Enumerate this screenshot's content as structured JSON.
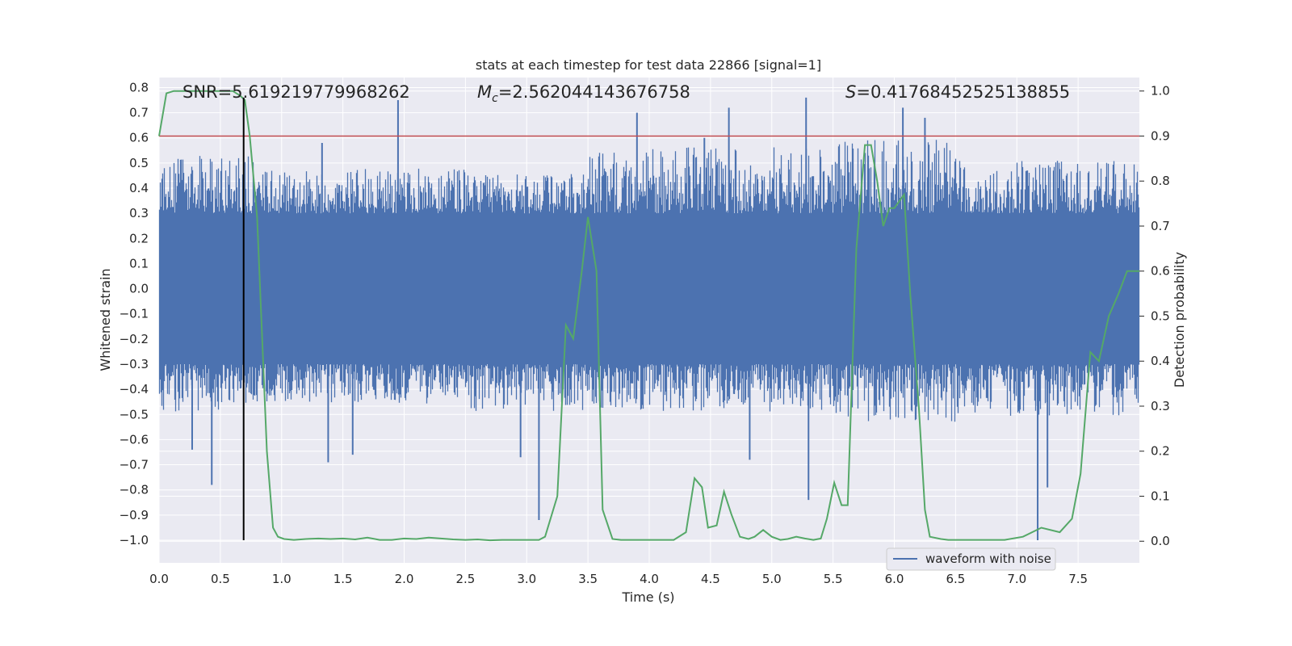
{
  "chart_data": {
    "type": "line",
    "title": "stats at each timestep for test data 22866 [signal=1]",
    "xlabel": "Time (s)",
    "ylabel": "Whitened strain",
    "y2label": "Detection probability",
    "xlim": [
      0.0,
      8.0
    ],
    "ylim": [
      -1.09,
      0.84
    ],
    "y2lim": [
      -0.048,
      1.03
    ],
    "xticks": [
      0.0,
      0.5,
      1.0,
      1.5,
      2.0,
      2.5,
      3.0,
      3.5,
      4.0,
      4.5,
      5.0,
      5.5,
      6.0,
      6.5,
      7.0,
      7.5
    ],
    "xtick_labels": [
      "0.0",
      "0.5",
      "1.0",
      "1.5",
      "2.0",
      "2.5",
      "3.0",
      "3.5",
      "4.0",
      "4.5",
      "5.0",
      "5.5",
      "6.0",
      "6.5",
      "7.0",
      "7.5"
    ],
    "yticks": [
      0.8,
      0.7,
      0.6,
      0.5,
      0.4,
      0.3,
      0.2,
      0.1,
      0.0,
      -0.1,
      -0.2,
      -0.3,
      -0.4,
      -0.5,
      -0.6,
      -0.7,
      -0.8,
      -0.9,
      -1.0
    ],
    "ytick_labels": [
      "0.8",
      "0.7",
      "0.6",
      "0.5",
      "0.4",
      "0.3",
      "0.2",
      "0.1",
      "0.0",
      "−0.1",
      "−0.2",
      "−0.3",
      "−0.4",
      "−0.5",
      "−0.6",
      "−0.7",
      "−0.8",
      "−0.9",
      "−1.0"
    ],
    "y2ticks": [
      1.0,
      0.9,
      0.8,
      0.7,
      0.6,
      0.5,
      0.4,
      0.3,
      0.2,
      0.1,
      0.0
    ],
    "y2tick_labels": [
      "1.0",
      "0.9",
      "0.8",
      "0.7",
      "0.6",
      "0.5",
      "0.4",
      "0.3",
      "0.2",
      "0.1",
      "0.0"
    ],
    "grid": true,
    "legend": {
      "position": "lower-right",
      "entries": [
        "waveform with noise"
      ]
    },
    "annotations": {
      "snr": "SNR=5.619219779968262",
      "mc_symbol": "M",
      "mc_sub": "c",
      "mc_value": "=2.562044143676758",
      "s_symbol": "S",
      "s_value": "=0.41768452525138855"
    },
    "threshold_y2": 0.9,
    "marker_time": 0.69,
    "marker_range": [
      -1.0,
      0.76
    ],
    "colors": {
      "waveform": "#4c72b0",
      "probability": "#55a868",
      "threshold": "#c44e52",
      "marker": "#000000",
      "background": "#eaeaf2",
      "grid": "#ffffff"
    },
    "waveform": {
      "name": "waveform with noise",
      "description": "dense whitened strain noise, core approx ±0.3",
      "core_band": [
        -0.3,
        0.3
      ],
      "segments": [
        {
          "t": [
            0.0,
            0.8
          ],
          "lo": -0.48,
          "hi": 0.52
        },
        {
          "t": [
            0.8,
            2.5
          ],
          "lo": -0.45,
          "hi": 0.47
        },
        {
          "t": [
            2.5,
            3.5
          ],
          "lo": -0.48,
          "hi": 0.45
        },
        {
          "t": [
            3.5,
            5.5
          ],
          "lo": -0.48,
          "hi": 0.55
        },
        {
          "t": [
            5.5,
            6.5
          ],
          "lo": -0.52,
          "hi": 0.58
        },
        {
          "t": [
            6.5,
            8.0
          ],
          "lo": -0.5,
          "hi": 0.5
        }
      ],
      "spikes": [
        {
          "t": 0.43,
          "v": -0.78
        },
        {
          "t": 1.95,
          "v": 0.75
        },
        {
          "t": 2.95,
          "v": -0.67
        },
        {
          "t": 3.1,
          "v": -0.92
        },
        {
          "t": 3.9,
          "v": 0.7
        },
        {
          "t": 4.65,
          "v": 0.72
        },
        {
          "t": 5.28,
          "v": 0.76
        },
        {
          "t": 5.3,
          "v": -0.84
        },
        {
          "t": 6.07,
          "v": 0.72
        },
        {
          "t": 6.25,
          "v": 0.68
        },
        {
          "t": 7.17,
          "v": -1.0
        },
        {
          "t": 7.25,
          "v": -0.79
        },
        {
          "t": 1.38,
          "v": -0.69
        },
        {
          "t": 1.58,
          "v": -0.66
        },
        {
          "t": 0.27,
          "v": -0.64
        },
        {
          "t": 4.82,
          "v": -0.68
        },
        {
          "t": 1.33,
          "v": 0.58
        },
        {
          "t": 4.45,
          "v": 0.6
        }
      ]
    },
    "probability": {
      "name": "detection probability",
      "x": [
        0.0,
        0.06,
        0.12,
        0.2,
        0.3,
        0.4,
        0.5,
        0.6,
        0.66,
        0.7,
        0.74,
        0.8,
        0.88,
        0.93,
        0.97,
        1.02,
        1.1,
        1.2,
        1.3,
        1.4,
        1.5,
        1.6,
        1.7,
        1.8,
        1.9,
        2.0,
        2.1,
        2.2,
        2.3,
        2.4,
        2.5,
        2.6,
        2.7,
        2.8,
        2.9,
        3.0,
        3.1,
        3.15,
        3.25,
        3.32,
        3.38,
        3.45,
        3.5,
        3.57,
        3.62,
        3.7,
        3.77,
        3.85,
        4.0,
        4.1,
        4.2,
        4.3,
        4.37,
        4.43,
        4.48,
        4.55,
        4.61,
        4.67,
        4.74,
        4.81,
        4.86,
        4.93,
        5.0,
        5.07,
        5.13,
        5.2,
        5.27,
        5.34,
        5.4,
        5.45,
        5.51,
        5.57,
        5.62,
        5.69,
        5.76,
        5.81,
        5.86,
        5.91,
        5.96,
        6.0,
        6.08,
        6.13,
        6.2,
        6.25,
        6.29,
        6.38,
        6.44,
        6.52,
        6.62,
        6.75,
        6.9,
        7.05,
        7.2,
        7.35,
        7.45,
        7.52,
        7.6,
        7.67,
        7.75,
        7.83,
        7.9,
        7.95,
        8.0
      ],
      "values": [
        0.9,
        0.995,
        1.0,
        1.0,
        1.0,
        1.0,
        1.0,
        1.0,
        0.99,
        0.98,
        0.9,
        0.72,
        0.2,
        0.03,
        0.01,
        0.005,
        0.003,
        0.005,
        0.006,
        0.005,
        0.006,
        0.004,
        0.008,
        0.003,
        0.003,
        0.006,
        0.005,
        0.008,
        0.006,
        0.004,
        0.003,
        0.004,
        0.002,
        0.003,
        0.003,
        0.003,
        0.003,
        0.01,
        0.1,
        0.48,
        0.45,
        0.6,
        0.72,
        0.6,
        0.07,
        0.005,
        0.003,
        0.003,
        0.003,
        0.003,
        0.003,
        0.02,
        0.14,
        0.12,
        0.03,
        0.035,
        0.11,
        0.06,
        0.01,
        0.005,
        0.01,
        0.025,
        0.01,
        0.003,
        0.005,
        0.01,
        0.006,
        0.003,
        0.006,
        0.05,
        0.13,
        0.08,
        0.08,
        0.65,
        0.88,
        0.88,
        0.8,
        0.7,
        0.74,
        0.74,
        0.77,
        0.55,
        0.3,
        0.07,
        0.01,
        0.005,
        0.003,
        0.003,
        0.003,
        0.003,
        0.003,
        0.01,
        0.03,
        0.02,
        0.05,
        0.15,
        0.42,
        0.4,
        0.5,
        0.55,
        0.6,
        0.6,
        0.6
      ]
    }
  }
}
